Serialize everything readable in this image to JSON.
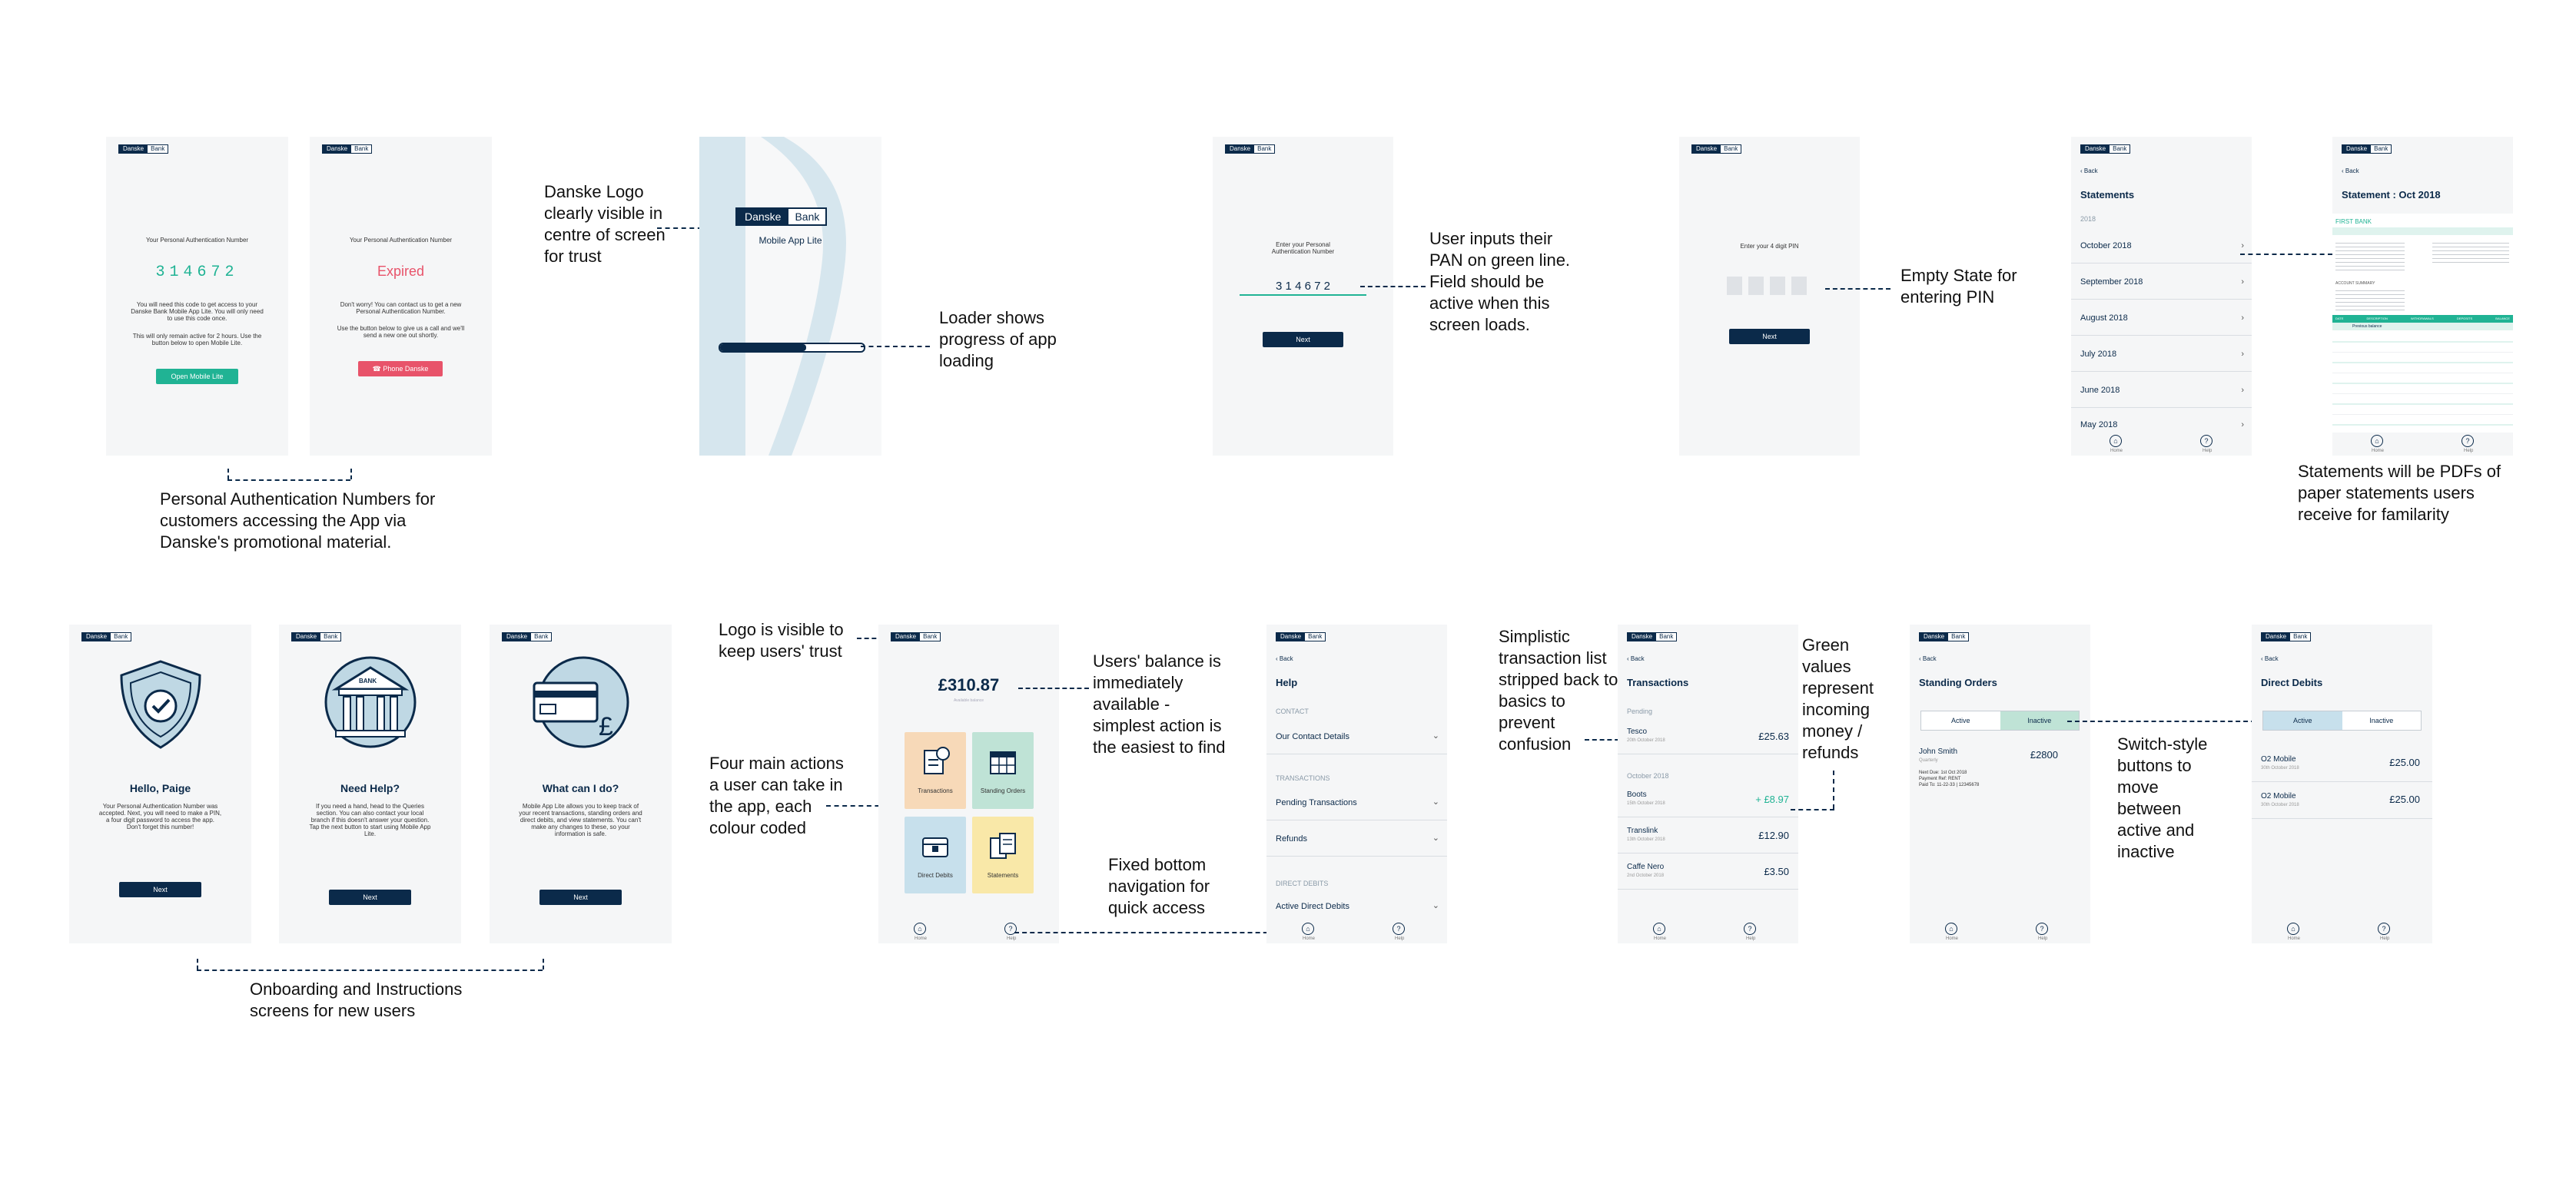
{
  "brand": {
    "logo_left": "Danske",
    "logo_right": "Bank"
  },
  "pan_screens": {
    "label": "Your Personal Authentication Number",
    "code": "314672",
    "body": "You will need this code to get access to your Danske Bank Mobile App Lite. You will only need to use this code once.",
    "body2": "This will only remain active for 2 hours. Use the button below to open Mobile Lite.",
    "open_button": "Open Mobile Lite",
    "expired": "Expired",
    "expired_body": "Don't worry! You can contact us to get a new Personal Authentication Number.",
    "expired_body2": "Use the button below to give us a call and we'll send a new one out shortly.",
    "phone_button": "Phone Danske"
  },
  "loader_screen": {
    "app_name": "Mobile App Lite"
  },
  "pan_input_screen": {
    "prompt": "Enter your Personal Authentication Number",
    "value": "3 1 4 6 7 2",
    "button": "Next"
  },
  "pin_screen": {
    "prompt": "Enter your 4 digit PIN",
    "button": "Next"
  },
  "statements_list": {
    "back": "Back",
    "title": "Statements",
    "year": "2018",
    "items": [
      "October 2018",
      "September 2018",
      "August 2018",
      "July 2018",
      "June 2018",
      "May 2018"
    ],
    "nav_home": "Home",
    "nav_help": "Help"
  },
  "statement_detail": {
    "back": "Back",
    "title": "Statement : Oct 2018",
    "bank": "FIRST BANK",
    "section": "ACCOUNT SUMMARY",
    "table_headers": [
      "DATE",
      "DESCRIPTION",
      "WITHDRAWALS",
      "DEPOSITS",
      "BALANCE"
    ],
    "opening": "Previous balance"
  },
  "onboarding": [
    {
      "title": "Hello, Paige",
      "body": "Your Personal Authentication Number was accepted. Next, you will need to make a PIN, a four digit password to access the app. Don't forget this number!",
      "button": "Next",
      "icon": "shield-check-icon"
    },
    {
      "title": "Need Help?",
      "body": "If you need a hand, head to the Queries section. You can also contact your local branch if this doesn't answer your question. Tap the next button to start using Mobile App Lite.",
      "button": "Next",
      "icon": "bank-building-icon",
      "badge": "BANK"
    },
    {
      "title": "What can I do?",
      "body": "Mobile App Lite allows you to keep track of your recent transactions, standing orders and direct debits, and view statements. You can't make any changes to these, so your information is safe.",
      "button": "Next",
      "icon": "card-pound-icon"
    }
  ],
  "home_screen": {
    "balance": "£310.87",
    "balance_label": "Available balance",
    "tiles": [
      {
        "label": "Transactions",
        "color": "#f7d9b8"
      },
      {
        "label": "Standing Orders",
        "color": "#bfe3d6"
      },
      {
        "label": "Direct Debits",
        "color": "#c7e0ec"
      },
      {
        "label": "Statements",
        "color": "#f9e8a8"
      }
    ],
    "nav_home": "Home",
    "nav_help": "Help"
  },
  "help_screen": {
    "back": "Back",
    "title": "Help",
    "contact_section": "CONTACT",
    "contact_item": "Our Contact Details",
    "transactions_section": "TRANSACTIONS",
    "tx_items": [
      "Pending Transactions",
      "Refunds"
    ],
    "dd_section": "DIRECT DEBITS",
    "dd_item": "Active Direct Debits",
    "nav_home": "Home",
    "nav_help": "Help"
  },
  "transactions_screen": {
    "title": "Transactions",
    "pending_section": "Pending",
    "month_section": "October 2018",
    "items": [
      {
        "name": "Tesco",
        "date": "20th October 2018",
        "amount": "£25.63",
        "type": "out"
      },
      {
        "name": "Boots",
        "date": "15th October 2018",
        "amount": "+ £8.97",
        "type": "in"
      },
      {
        "name": "Translink",
        "date": "13th October 2018",
        "amount": "£12.90",
        "type": "out"
      },
      {
        "name": "Caffe Nero",
        "date": "2nd October 2018",
        "amount": "£3.50",
        "type": "out"
      }
    ],
    "nav_home": "Home",
    "nav_help": "Help"
  },
  "standing_orders_screen": {
    "back": "Back",
    "title": "Standing Orders",
    "toggle_active": "Active",
    "toggle_inactive": "Inactive",
    "item_name": "John Smith",
    "item_freq": "Quarterly",
    "item_amount": "£2800",
    "next_due": "Next Due: 1st Oct 2018",
    "payment_ref": "Payment Ref: RENT",
    "paid_to": "Paid To: 11-22-33 | 12345678",
    "nav_home": "Home",
    "nav_help": "Help"
  },
  "direct_debits_screen": {
    "back": "Back",
    "title": "Direct Debits",
    "toggle_active": "Active",
    "toggle_inactive": "Inactive",
    "items": [
      {
        "name": "O2 Mobile",
        "date": "30th October 2018",
        "amount": "£25.00"
      },
      {
        "name": "O2 Mobile",
        "date": "30th October 2018",
        "amount": "£25.00"
      }
    ],
    "nav_home": "Home",
    "nav_help": "Help"
  },
  "annotations": {
    "pan_caption": "Personal Authentication Numbers for customers accessing the App via Danske's promotional material.",
    "logo_note": "Danske Logo clearly visible in centre of screen for trust",
    "loader_note": "Loader shows progress of app loading",
    "pan_input_note": "User inputs their PAN on green line. Field should be active when this screen loads.",
    "pin_note": "Empty State for entering PIN",
    "statements_note": "Statements will be PDFs of paper statements users receive for familarity",
    "onboarding_note": "Onboarding and Instructions screens for new users",
    "logo_trust_note": "Logo is visible to keep users' trust",
    "actions_note": "Four main actions a user can take in the app, each colour coded",
    "balance_note": "Users' balance is immediately available - simplest action is the easiest to find",
    "nav_note": "Fixed bottom navigation for quick access",
    "tx_note": "Simplistic transaction list stripped back to basics to prevent confusion",
    "green_note": "Green values represent incoming money / refunds",
    "switch_note": "Switch-style buttons to move between active and inactive"
  },
  "colors": {
    "navy": "#0b2a4a",
    "teal": "#20b394",
    "red": "#e8536a",
    "screen_bg": "#f5f6f7"
  }
}
